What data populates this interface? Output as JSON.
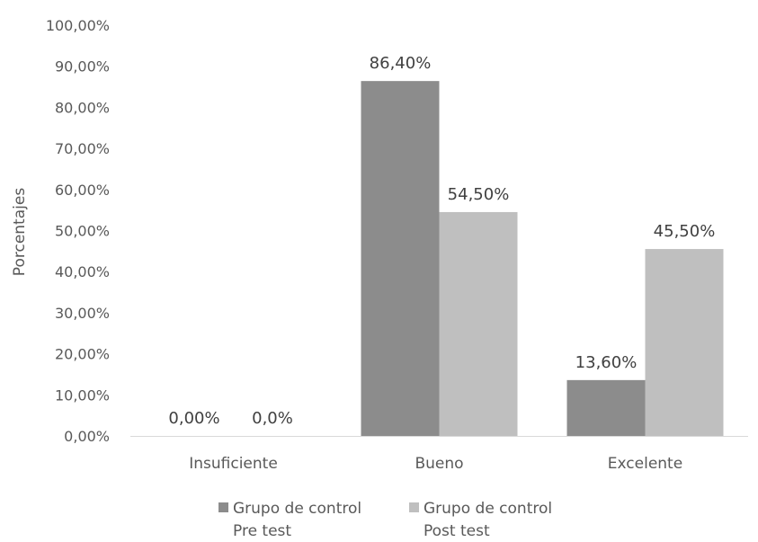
{
  "chart_data": {
    "type": "bar",
    "title": "",
    "xlabel": "",
    "ylabel": "Porcentajes",
    "ylim": [
      0,
      100
    ],
    "yticks": [
      0,
      10,
      20,
      30,
      40,
      50,
      60,
      70,
      80,
      90,
      100
    ],
    "ytick_labels": [
      "0,00%",
      "10,00%",
      "20,00%",
      "30,00%",
      "40,00%",
      "50,00%",
      "60,00%",
      "70,00%",
      "80,00%",
      "90,00%",
      "100,00%"
    ],
    "categories": [
      "Insuficiente",
      "Bueno",
      "Excelente"
    ],
    "grid": false,
    "legend_position": "bottom",
    "series": [
      {
        "name": "Grupo de control Pre test",
        "legend_lines": [
          "Grupo de control",
          "Pre test"
        ],
        "color": "#8c8c8c",
        "values": [
          0,
          86.4,
          13.6
        ],
        "labels": [
          "0,00%",
          "86,40%",
          "13,60%"
        ]
      },
      {
        "name": "Grupo de control Post test",
        "legend_lines": [
          "Grupo de control",
          "Post test"
        ],
        "color": "#bfbfbf",
        "values": [
          0,
          54.5,
          45.5
        ],
        "labels": [
          "0,0%",
          "54,50%",
          "45,50%"
        ]
      }
    ]
  }
}
